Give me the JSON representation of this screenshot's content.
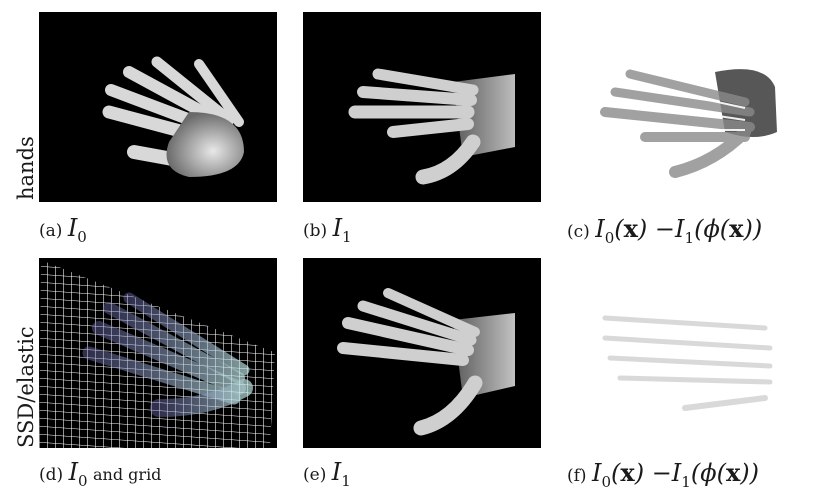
{
  "row_labels": {
    "top": "hands",
    "bottom": "SSD/elastic"
  },
  "captions": {
    "a": {
      "tag": "(a)",
      "sym": "I",
      "sub": "0"
    },
    "b": {
      "tag": "(b)",
      "sym": "I",
      "sub": "1"
    },
    "c": {
      "tag": "(c)",
      "sym1": "I",
      "sub1": "0",
      "x1": "x",
      "minus": "−",
      "sym2": "I",
      "sub2": "1",
      "phi": "ϕ",
      "x2": "x"
    },
    "d": {
      "tag": "(d)",
      "sym": "I",
      "sub": "0",
      "rest": "and grid"
    },
    "e": {
      "tag": "(e)",
      "sym": "I",
      "sub": "1"
    },
    "f": {
      "tag": "(f)",
      "sym1": "I",
      "sub1": "0",
      "x1": "x",
      "minus": "−",
      "sym2": "I",
      "sub2": "1",
      "phi": "ϕ",
      "x2": "x"
    }
  }
}
